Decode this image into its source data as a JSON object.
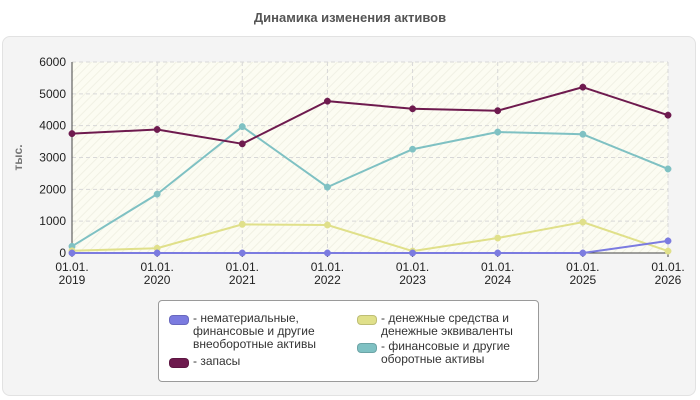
{
  "chart_data": {
    "type": "line",
    "title": "Динамика изменения активов",
    "ylabel": "тыс.",
    "xlabel": "",
    "categories": [
      [
        "01.01.",
        "2019"
      ],
      [
        "01.01.",
        "2020"
      ],
      [
        "01.01.",
        "2021"
      ],
      [
        "01.01.",
        "2022"
      ],
      [
        "01.01.",
        "2023"
      ],
      [
        "01.01.",
        "2024"
      ],
      [
        "01.01.",
        "2025"
      ],
      [
        "01.01.",
        "2026"
      ]
    ],
    "yticks": [
      "0",
      "1000",
      "2000",
      "3000",
      "4000",
      "5000",
      "6000"
    ],
    "ylim": [
      0,
      6000
    ],
    "grid": true,
    "legend_position": "bottom",
    "series": [
      {
        "name": "- нематериальные, финансовые и другие внеоборотные активы",
        "color": "#7b7be0",
        "values": [
          0,
          0,
          0,
          0,
          0,
          0,
          0,
          380
        ]
      },
      {
        "name": "- денежные средства и денежные эквиваленты",
        "color": "#e0e08a",
        "values": [
          70,
          150,
          900,
          880,
          60,
          470,
          970,
          60
        ]
      },
      {
        "name": "- запасы",
        "color": "#6e1a4e",
        "values": [
          3750,
          3880,
          3430,
          4770,
          4530,
          4470,
          5210,
          4330
        ]
      },
      {
        "name": "- финансовые и другие оборотные активы",
        "color": "#7fc1c3",
        "values": [
          210,
          1850,
          3970,
          2070,
          3260,
          3800,
          3730,
          2640
        ]
      }
    ]
  },
  "legend": {
    "items": [
      {
        "text": "- нематериальные,\nфинансовые и другие\nвнеоборотные активы",
        "color": "#7b7be0"
      },
      {
        "text": "- денежные средства и\nденежные эквиваленты",
        "color": "#e0e08a"
      },
      {
        "text": "- запасы",
        "color": "#6e1a4e"
      },
      {
        "text": "- финансовые и другие\nоборотные активы",
        "color": "#7fc1c3"
      }
    ]
  }
}
